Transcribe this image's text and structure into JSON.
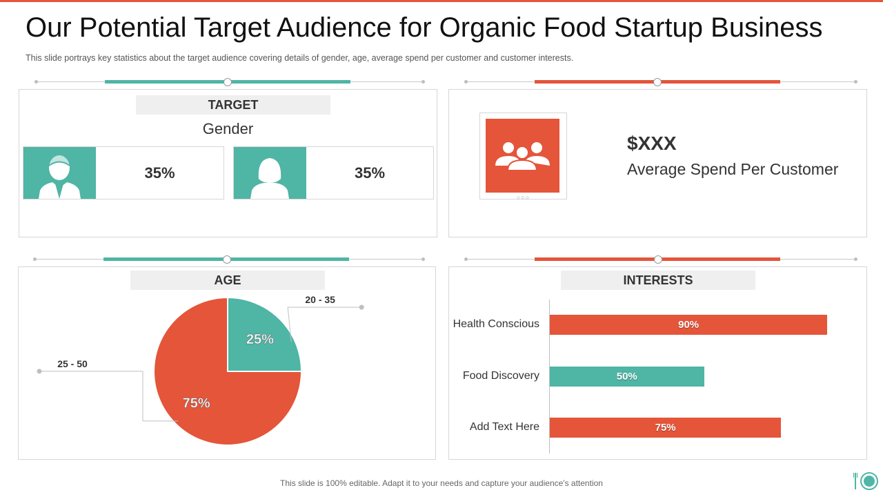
{
  "slide": {
    "title": "Our Potential Target Audience for Organic Food Startup Business",
    "subtitle": "This slide portrays key statistics about the target audience covering  details of gender,  age, average  spend per customer and customer interests.",
    "footer": "This slide is 100% editable. Adapt it to your needs and capture your audience's attention"
  },
  "colors": {
    "accent": "#e4553a",
    "teal": "#4fb5a5",
    "panel_header_bg": "#efefef",
    "border": "#d6d6d6"
  },
  "target": {
    "header": "TARGET",
    "label": "Gender",
    "male": {
      "icon": "male-user-icon",
      "percent": "35%"
    },
    "female": {
      "icon": "female-user-icon",
      "percent": "35%"
    }
  },
  "spend": {
    "icon": "group-users-icon",
    "amount": "$XXX",
    "label": "Average  Spend Per Customer"
  },
  "age": {
    "header": "AGE"
  },
  "interests": {
    "header": "INTERESTS"
  },
  "chart_data": [
    {
      "type": "pie",
      "title": "AGE",
      "categories": [
        "20 - 35",
        "25 - 50"
      ],
      "values": [
        25,
        75
      ],
      "value_labels": [
        "25%",
        "75%"
      ],
      "colors": [
        "#4fb5a5",
        "#e4553a"
      ]
    },
    {
      "type": "bar",
      "orientation": "horizontal",
      "title": "INTERESTS",
      "categories": [
        "Health Conscious",
        "Food Discovery",
        "Add Text Here"
      ],
      "values": [
        90,
        50,
        75
      ],
      "value_labels": [
        "90%",
        "50%",
        "75%"
      ],
      "colors": [
        "#e4553a",
        "#4fb5a5",
        "#e4553a"
      ],
      "xlim": [
        0,
        100
      ]
    }
  ]
}
